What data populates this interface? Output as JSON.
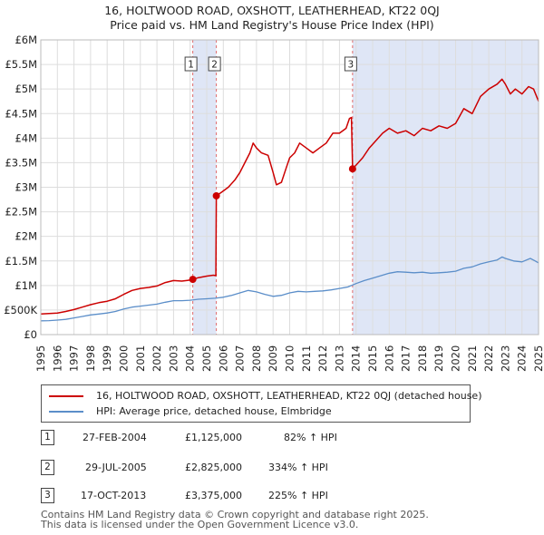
{
  "title_line1": "16, HOLTWOOD ROAD, OXSHOTT, LEATHERHEAD, KT22 0QJ",
  "title_line2": "Price paid vs. HM Land Registry's House Price Index (HPI)",
  "colors": {
    "property": "#cc0000",
    "hpi": "#5b8ec9",
    "shade": "#dfe6f6",
    "marker_line": "#e06a6a",
    "grid": "#dddddd"
  },
  "chart_data": {
    "type": "line",
    "title": "16, HOLTWOOD ROAD, OXSHOTT, LEATHERHEAD, KT22 0QJ",
    "subtitle": "Price paid vs. HM Land Registry's House Price Index (HPI)",
    "xlabel": "",
    "ylabel": "",
    "xlim": [
      1995.0,
      2025.0
    ],
    "ylim": [
      0,
      6000000
    ],
    "yticks": [
      {
        "value": 0,
        "label": "£0"
      },
      {
        "value": 500000,
        "label": "£500K"
      },
      {
        "value": 1000000,
        "label": "£1M"
      },
      {
        "value": 1500000,
        "label": "£1.5M"
      },
      {
        "value": 2000000,
        "label": "£2M"
      },
      {
        "value": 2500000,
        "label": "£2.5M"
      },
      {
        "value": 3000000,
        "label": "£3M"
      },
      {
        "value": 3500000,
        "label": "£3.5M"
      },
      {
        "value": 4000000,
        "label": "£4M"
      },
      {
        "value": 4500000,
        "label": "£4.5M"
      },
      {
        "value": 5000000,
        "label": "£5M"
      },
      {
        "value": 5500000,
        "label": "£5.5M"
      },
      {
        "value": 6000000,
        "label": "£6M"
      }
    ],
    "xticks": [
      "1995",
      "1996",
      "1997",
      "1998",
      "1999",
      "2000",
      "2001",
      "2002",
      "2003",
      "2004",
      "2005",
      "2006",
      "2007",
      "2008",
      "2009",
      "2010",
      "2011",
      "2012",
      "2013",
      "2014",
      "2015",
      "2016",
      "2017",
      "2018",
      "2019",
      "2020",
      "2021",
      "2022",
      "2023",
      "2024",
      "2025"
    ],
    "grid": true,
    "shaded_periods": [
      {
        "from": 2004.16,
        "to": 2005.58
      },
      {
        "from": 2013.79,
        "to": 2025.0
      }
    ],
    "sales": [
      {
        "id": "1",
        "x": 2004.16,
        "price": 1125000
      },
      {
        "id": "2",
        "x": 2005.58,
        "price": 2825000
      },
      {
        "id": "3",
        "x": 2013.79,
        "price": 3375000
      }
    ],
    "series": [
      {
        "name": "16, HOLTWOOD ROAD, OXSHOTT, LEATHERHEAD, KT22 0QJ (detached house)",
        "color": "#cc0000",
        "points": [
          [
            1995.0,
            420000
          ],
          [
            1995.5,
            430000
          ],
          [
            1996.0,
            440000
          ],
          [
            1996.5,
            470000
          ],
          [
            1997.0,
            510000
          ],
          [
            1997.5,
            560000
          ],
          [
            1998.0,
            610000
          ],
          [
            1998.5,
            650000
          ],
          [
            1999.0,
            680000
          ],
          [
            1999.5,
            730000
          ],
          [
            2000.0,
            820000
          ],
          [
            2000.5,
            900000
          ],
          [
            2001.0,
            940000
          ],
          [
            2001.5,
            960000
          ],
          [
            2002.0,
            990000
          ],
          [
            2002.5,
            1060000
          ],
          [
            2003.0,
            1100000
          ],
          [
            2003.5,
            1090000
          ],
          [
            2004.0,
            1110000
          ],
          [
            2004.16,
            1125000
          ],
          [
            2004.5,
            1160000
          ],
          [
            2005.0,
            1190000
          ],
          [
            2005.4,
            1210000
          ],
          [
            2005.55,
            1200000
          ],
          [
            2005.58,
            2825000
          ],
          [
            2005.9,
            2900000
          ],
          [
            2006.3,
            3000000
          ],
          [
            2006.7,
            3150000
          ],
          [
            2007.0,
            3300000
          ],
          [
            2007.3,
            3500000
          ],
          [
            2007.6,
            3700000
          ],
          [
            2007.8,
            3900000
          ],
          [
            2008.0,
            3800000
          ],
          [
            2008.3,
            3700000
          ],
          [
            2008.7,
            3650000
          ],
          [
            2009.0,
            3300000
          ],
          [
            2009.2,
            3050000
          ],
          [
            2009.5,
            3100000
          ],
          [
            2009.8,
            3400000
          ],
          [
            2010.0,
            3600000
          ],
          [
            2010.3,
            3700000
          ],
          [
            2010.6,
            3900000
          ],
          [
            2011.0,
            3800000
          ],
          [
            2011.4,
            3700000
          ],
          [
            2011.8,
            3800000
          ],
          [
            2012.2,
            3900000
          ],
          [
            2012.6,
            4100000
          ],
          [
            2013.0,
            4100000
          ],
          [
            2013.4,
            4200000
          ],
          [
            2013.6,
            4400000
          ],
          [
            2013.72,
            4420000
          ],
          [
            2013.79,
            3375000
          ],
          [
            2014.0,
            3450000
          ],
          [
            2014.4,
            3600000
          ],
          [
            2014.8,
            3800000
          ],
          [
            2015.2,
            3950000
          ],
          [
            2015.6,
            4100000
          ],
          [
            2016.0,
            4200000
          ],
          [
            2016.5,
            4100000
          ],
          [
            2017.0,
            4150000
          ],
          [
            2017.5,
            4050000
          ],
          [
            2018.0,
            4200000
          ],
          [
            2018.5,
            4150000
          ],
          [
            2019.0,
            4250000
          ],
          [
            2019.5,
            4200000
          ],
          [
            2020.0,
            4300000
          ],
          [
            2020.5,
            4600000
          ],
          [
            2021.0,
            4500000
          ],
          [
            2021.5,
            4850000
          ],
          [
            2022.0,
            5000000
          ],
          [
            2022.5,
            5100000
          ],
          [
            2022.8,
            5200000
          ],
          [
            2023.0,
            5100000
          ],
          [
            2023.3,
            4900000
          ],
          [
            2023.6,
            5000000
          ],
          [
            2024.0,
            4900000
          ],
          [
            2024.4,
            5050000
          ],
          [
            2024.7,
            5000000
          ],
          [
            2025.0,
            4750000
          ]
        ]
      },
      {
        "name": "HPI: Average price, detached house, Elmbridge",
        "color": "#5b8ec9",
        "points": [
          [
            1995.0,
            280000
          ],
          [
            1995.5,
            285000
          ],
          [
            1996.0,
            295000
          ],
          [
            1996.5,
            310000
          ],
          [
            1997.0,
            340000
          ],
          [
            1997.5,
            370000
          ],
          [
            1998.0,
            400000
          ],
          [
            1998.5,
            420000
          ],
          [
            1999.0,
            440000
          ],
          [
            1999.5,
            470000
          ],
          [
            2000.0,
            520000
          ],
          [
            2000.5,
            560000
          ],
          [
            2001.0,
            580000
          ],
          [
            2001.5,
            600000
          ],
          [
            2002.0,
            620000
          ],
          [
            2002.5,
            660000
          ],
          [
            2003.0,
            690000
          ],
          [
            2003.5,
            690000
          ],
          [
            2004.0,
            700000
          ],
          [
            2004.5,
            720000
          ],
          [
            2005.0,
            730000
          ],
          [
            2005.5,
            740000
          ],
          [
            2006.0,
            760000
          ],
          [
            2006.5,
            800000
          ],
          [
            2007.0,
            850000
          ],
          [
            2007.5,
            900000
          ],
          [
            2008.0,
            870000
          ],
          [
            2008.5,
            820000
          ],
          [
            2009.0,
            780000
          ],
          [
            2009.5,
            800000
          ],
          [
            2010.0,
            850000
          ],
          [
            2010.5,
            880000
          ],
          [
            2011.0,
            870000
          ],
          [
            2011.5,
            880000
          ],
          [
            2012.0,
            890000
          ],
          [
            2012.5,
            910000
          ],
          [
            2013.0,
            940000
          ],
          [
            2013.5,
            970000
          ],
          [
            2014.0,
            1040000
          ],
          [
            2014.5,
            1100000
          ],
          [
            2015.0,
            1150000
          ],
          [
            2015.5,
            1200000
          ],
          [
            2016.0,
            1250000
          ],
          [
            2016.5,
            1280000
          ],
          [
            2017.0,
            1270000
          ],
          [
            2017.5,
            1260000
          ],
          [
            2018.0,
            1270000
          ],
          [
            2018.5,
            1250000
          ],
          [
            2019.0,
            1260000
          ],
          [
            2019.5,
            1270000
          ],
          [
            2020.0,
            1290000
          ],
          [
            2020.5,
            1350000
          ],
          [
            2021.0,
            1380000
          ],
          [
            2021.5,
            1440000
          ],
          [
            2022.0,
            1480000
          ],
          [
            2022.5,
            1520000
          ],
          [
            2022.8,
            1580000
          ],
          [
            2023.0,
            1550000
          ],
          [
            2023.5,
            1500000
          ],
          [
            2024.0,
            1480000
          ],
          [
            2024.5,
            1550000
          ],
          [
            2024.8,
            1500000
          ],
          [
            2025.0,
            1460000
          ]
        ]
      }
    ]
  },
  "legend": {
    "property_label": "16, HOLTWOOD ROAD, OXSHOTT, LEATHERHEAD, KT22 0QJ (detached house)",
    "hpi_label": "HPI: Average price, detached house, Elmbridge"
  },
  "transactions": [
    {
      "id": "1",
      "date": "27-FEB-2004",
      "price": "£1,125,000",
      "hpi": "82% ↑ HPI"
    },
    {
      "id": "2",
      "date": "29-JUL-2005",
      "price": "£2,825,000",
      "hpi": "334% ↑ HPI"
    },
    {
      "id": "3",
      "date": "17-OCT-2013",
      "price": "£3,375,000",
      "hpi": "225% ↑ HPI"
    }
  ],
  "footer": {
    "line1": "Contains HM Land Registry data © Crown copyright and database right 2025.",
    "line2": "This data is licensed under the Open Government Licence v3.0."
  }
}
